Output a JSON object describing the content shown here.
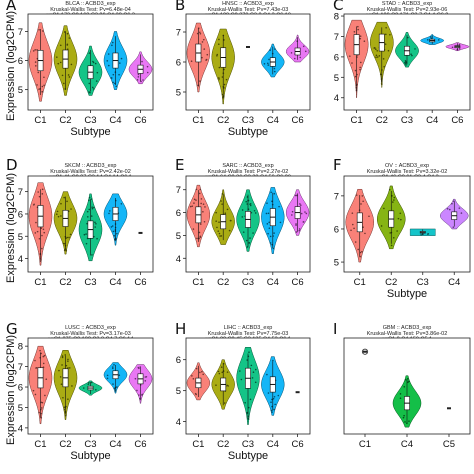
{
  "figure": {
    "ylabel": "Expression (log2CPM)"
  },
  "chart_data": [
    {
      "panel": "A",
      "type": "violin",
      "subtitle_lines": [
        "BLCA :: ACBD3_exp",
        "Kruskal-Wallis Test: Pv=6.48e-04",
        "n=C1 173,C2 168,C3 26,C4 38,C6 3"
      ],
      "xlabel": "Subtype",
      "ylabel": "Expression (log2CPM)",
      "categories": [
        "C1",
        "C2",
        "C3",
        "C4",
        "C6"
      ],
      "ylim": [
        4.3,
        7.6
      ],
      "yticks": [
        5,
        6,
        7
      ],
      "colors": [
        "#F8766D",
        "#A3A500",
        "#00BF7D",
        "#00B0F6",
        "#E76BF3"
      ],
      "medians": [
        6.0,
        6.05,
        5.6,
        6.0,
        5.7
      ],
      "ranges": [
        [
          4.6,
          7.3
        ],
        [
          4.8,
          7.2
        ],
        [
          4.8,
          6.5
        ],
        [
          5.0,
          7.0
        ],
        [
          5.2,
          6.3
        ]
      ]
    },
    {
      "panel": "B",
      "type": "violin",
      "subtitle_lines": [
        "HNSC :: ACBD3_exp",
        "Kruskal-Wallis Test: Pv=7.43e-03",
        "n=C1 128,C2 379,C3 2,C4 3,C6 10"
      ],
      "xlabel": "Subtype",
      "ylabel": "",
      "categories": [
        "C1",
        "C2",
        "C3",
        "C4",
        "C6"
      ],
      "ylim": [
        4.4,
        7.6
      ],
      "yticks": [
        5,
        6,
        7
      ],
      "colors": [
        "#F8766D",
        "#A3A500",
        "#00BF7D",
        "#00B0F6",
        "#E76BF3"
      ],
      "medians": [
        6.3,
        6.15,
        6.5,
        6.0,
        6.35
      ],
      "ranges": [
        [
          5.0,
          7.3
        ],
        [
          4.6,
          7.1
        ],
        [
          6.45,
          6.55
        ],
        [
          5.5,
          6.6
        ],
        [
          6.0,
          6.9
        ]
      ]
    },
    {
      "panel": "C",
      "type": "violin",
      "subtitle_lines": [
        "STAD :: ACBD3_exp",
        "Kruskal-Wallis Test: Pv=2.93e-06",
        "n=C1 129,C2 171,C3 7,C4 4,C6 2"
      ],
      "xlabel": "",
      "ylabel": "",
      "categories": [
        "C1",
        "C2",
        "C3",
        "C4",
        "C6"
      ],
      "ylim": [
        3.4,
        8.1
      ],
      "yticks": [
        4,
        5,
        6,
        7,
        8
      ],
      "colors": [
        "#F8766D",
        "#A3A500",
        "#00BF7D",
        "#00B0F6",
        "#E76BF3"
      ],
      "medians": [
        6.6,
        6.7,
        6.3,
        6.8,
        6.5
      ],
      "ranges": [
        [
          4.0,
          7.8
        ],
        [
          4.5,
          7.7
        ],
        [
          5.5,
          7.2
        ],
        [
          6.6,
          7.1
        ],
        [
          6.3,
          6.7
        ]
      ]
    },
    {
      "panel": "D",
      "type": "violin",
      "subtitle_lines": [
        "SKCM :: ACBD3_exp",
        "Kruskal-Wallis Test: Pv=2.42e-02",
        "n=C1 41,C2 27,C3 14,C4 14,C6 1"
      ],
      "xlabel": "",
      "ylabel": "Expression (log2CPM)",
      "categories": [
        "C1",
        "C2",
        "C3",
        "C4",
        "C6"
      ],
      "ylim": [
        3.4,
        7.7
      ],
      "yticks": [
        4,
        5,
        6,
        7
      ],
      "colors": [
        "#F8766D",
        "#A3A500",
        "#00BF7D",
        "#00B0F6",
        "#E76BF3"
      ],
      "medians": [
        5.9,
        5.8,
        5.3,
        6.0,
        5.15
      ],
      "ranges": [
        [
          3.7,
          7.4
        ],
        [
          4.2,
          7.0
        ],
        [
          3.9,
          6.9
        ],
        [
          4.6,
          6.9
        ],
        [
          5.1,
          5.2
        ]
      ]
    },
    {
      "panel": "E",
      "type": "violin",
      "subtitle_lines": [
        "SARC :: ACBD3_exp",
        "Kruskal-Wallis Test: Pv=2.27e-02",
        "n=C1 64,C2 36,C3 38,C4 59,C6 20"
      ],
      "xlabel": "",
      "ylabel": "",
      "categories": [
        "C1",
        "C2",
        "C3",
        "C4",
        "C6"
      ],
      "ylim": [
        3.4,
        7.6
      ],
      "yticks": [
        4,
        5,
        6,
        7
      ],
      "colors": [
        "#F8766D",
        "#A3A500",
        "#00BF7D",
        "#00B0F6",
        "#E76BF3"
      ],
      "medians": [
        5.9,
        5.6,
        5.7,
        5.8,
        6.0
      ],
      "ranges": [
        [
          4.5,
          7.2
        ],
        [
          4.6,
          7.0
        ],
        [
          4.3,
          7.0
        ],
        [
          4.2,
          7.1
        ],
        [
          5.0,
          7.0
        ]
      ]
    },
    {
      "panel": "F",
      "type": "violin",
      "subtitle_lines": [
        "OV :: ACBD3_exp",
        "Kruskal-Wallis Test: Pv=3.32e-02",
        "n=C1 46,C2 61,C3 4,C4 3"
      ],
      "xlabel": "Subtype",
      "ylabel": "",
      "categories": [
        "C1",
        "C2",
        "C3",
        "C4"
      ],
      "ylim": [
        4.7,
        7.6
      ],
      "yticks": [
        5,
        6,
        7
      ],
      "colors": [
        "#F8766D",
        "#7CAE00",
        "#00BFC4",
        "#C77CFF"
      ],
      "medians": [
        6.2,
        6.3,
        5.9,
        6.4
      ],
      "ranges": [
        [
          5.0,
          7.2
        ],
        [
          5.4,
          7.3
        ],
        [
          5.8,
          6.0
        ],
        [
          6.0,
          6.9
        ]
      ]
    },
    {
      "panel": "G",
      "type": "violin",
      "subtitle_lines": [
        "LUSC :: ACBD3_exp",
        "Kruskal-Wallis Test: Pv=3.17e-03",
        "n=C1 275,C2 182,C3 8,C4 7,C6 14"
      ],
      "xlabel": "Subtype",
      "ylabel": "Expression (log2CPM)",
      "categories": [
        "C1",
        "C2",
        "C3",
        "C4",
        "C6"
      ],
      "ylim": [
        3.7,
        8.4
      ],
      "yticks": [
        4,
        5,
        6,
        7,
        8
      ],
      "colors": [
        "#F8766D",
        "#A3A500",
        "#00BF7D",
        "#00B0F6",
        "#E76BF3"
      ],
      "medians": [
        6.45,
        6.45,
        5.95,
        6.6,
        6.4
      ],
      "ranges": [
        [
          4.2,
          8.0
        ],
        [
          4.4,
          7.8
        ],
        [
          5.6,
          6.3
        ],
        [
          5.7,
          7.2
        ],
        [
          5.2,
          7.1
        ]
      ]
    },
    {
      "panel": "H",
      "type": "violin",
      "subtitle_lines": [
        "LIHC :: ACBD3_exp",
        "Kruskal-Wallis Test: Pv=7.75e-03",
        "n=C1 22,C2 45,C3 135,C4 53,C6 1"
      ],
      "xlabel": "Subtype",
      "ylabel": "",
      "categories": [
        "C1",
        "C2",
        "C3",
        "C4",
        "C6"
      ],
      "ylim": [
        3.6,
        6.7
      ],
      "yticks": [
        4,
        5,
        6
      ],
      "colors": [
        "#F8766D",
        "#A3A500",
        "#00BF7D",
        "#00B0F6",
        "#E76BF3"
      ],
      "medians": [
        5.25,
        5.2,
        5.4,
        5.2,
        4.95
      ],
      "ranges": [
        [
          4.7,
          5.9
        ],
        [
          4.4,
          6.0
        ],
        [
          3.9,
          6.4
        ],
        [
          4.2,
          6.1
        ],
        [
          4.9,
          5.0
        ]
      ]
    },
    {
      "panel": "I",
      "type": "violin",
      "subtitle_lines": [
        "GBM :: ACBD3_exp",
        "Kruskal-Wallis Test: Pv=3.86e-02",
        "n=C1 2,C4 150,C5 1"
      ],
      "xlabel": "",
      "ylabel": "",
      "categories": [
        "C1",
        "C4",
        "C5"
      ],
      "ylim": [
        4.7,
        7.5
      ],
      "yticks": [],
      "colors": [
        "#F8766D",
        "#00BA38",
        "#619CFF"
      ],
      "medians": [
        7.1,
        5.6,
        5.45
      ],
      "ranges": [
        [
          7.05,
          7.15
        ],
        [
          4.9,
          6.4
        ],
        [
          5.4,
          5.5
        ]
      ]
    }
  ]
}
